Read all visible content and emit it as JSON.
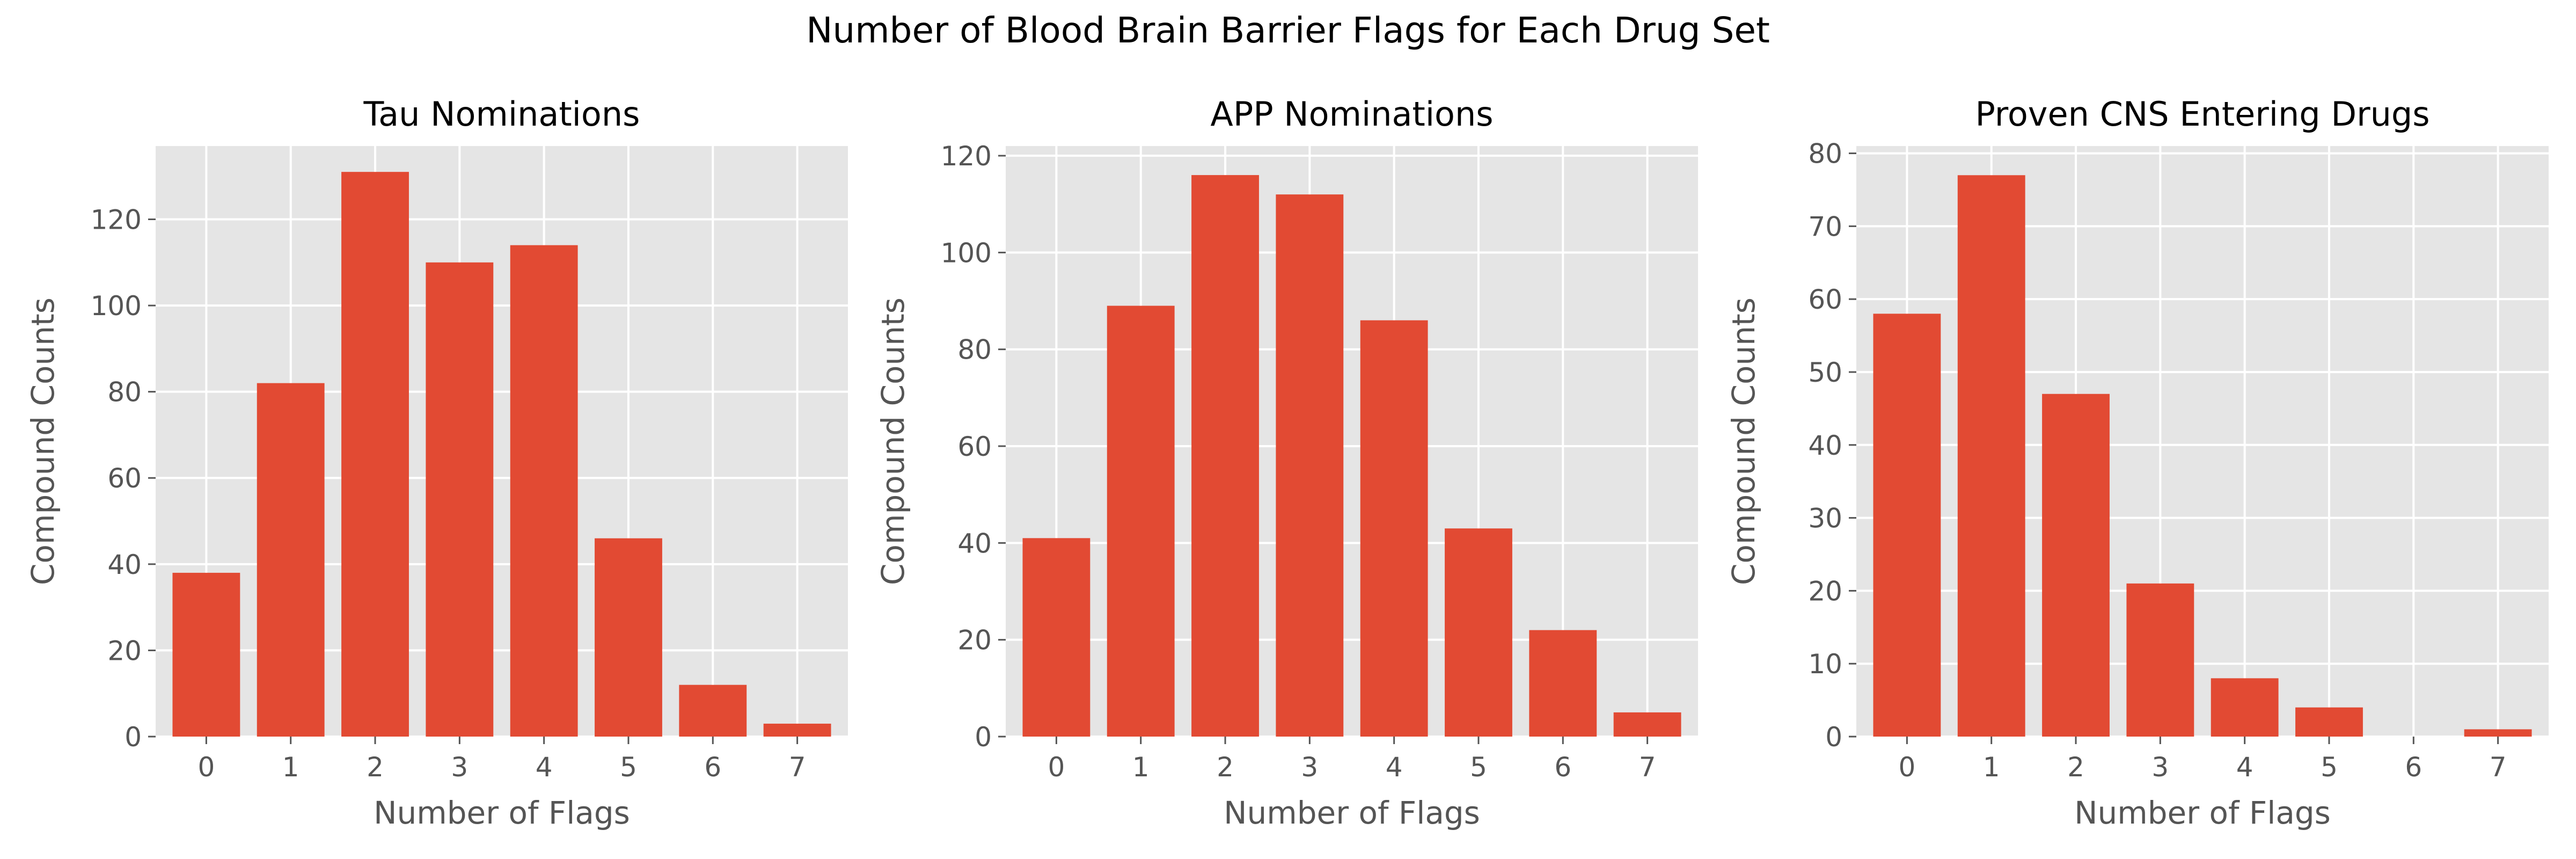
{
  "suptitle": "Number of Blood Brain Barrier Flags for Each Drug Set",
  "colors": {
    "bar": "#E24A33",
    "plot_bg": "#E5E5E5",
    "grid": "#FFFFFF",
    "tick_text": "#555555",
    "title_text": "#000000"
  },
  "chart_data": [
    {
      "type": "bar",
      "title": "Tau Nominations",
      "xlabel": "Number of Flags",
      "ylabel": "Compound Counts",
      "categories": [
        "0",
        "1",
        "2",
        "3",
        "4",
        "5",
        "6",
        "7"
      ],
      "values": [
        38,
        82,
        131,
        110,
        114,
        46,
        12,
        3
      ],
      "ylim": [
        0,
        137
      ],
      "yticks": [
        0,
        20,
        40,
        60,
        80,
        100,
        120
      ],
      "grid": true
    },
    {
      "type": "bar",
      "title": "APP Nominations",
      "xlabel": "Number of Flags",
      "ylabel": "Compound Counts",
      "categories": [
        "0",
        "1",
        "2",
        "3",
        "4",
        "5",
        "6",
        "7"
      ],
      "values": [
        41,
        89,
        116,
        112,
        86,
        43,
        22,
        5
      ],
      "ylim": [
        0,
        122
      ],
      "yticks": [
        0,
        20,
        40,
        60,
        80,
        100,
        120
      ],
      "grid": true
    },
    {
      "type": "bar",
      "title": "Proven CNS Entering Drugs",
      "xlabel": "Number of Flags",
      "ylabel": "Compound Counts",
      "categories": [
        "0",
        "1",
        "2",
        "3",
        "4",
        "5",
        "6",
        "7"
      ],
      "values": [
        58,
        77,
        47,
        21,
        8,
        4,
        0,
        1
      ],
      "ylim": [
        0,
        81
      ],
      "yticks": [
        0,
        10,
        20,
        30,
        40,
        50,
        60,
        70,
        80
      ],
      "grid": true
    }
  ]
}
